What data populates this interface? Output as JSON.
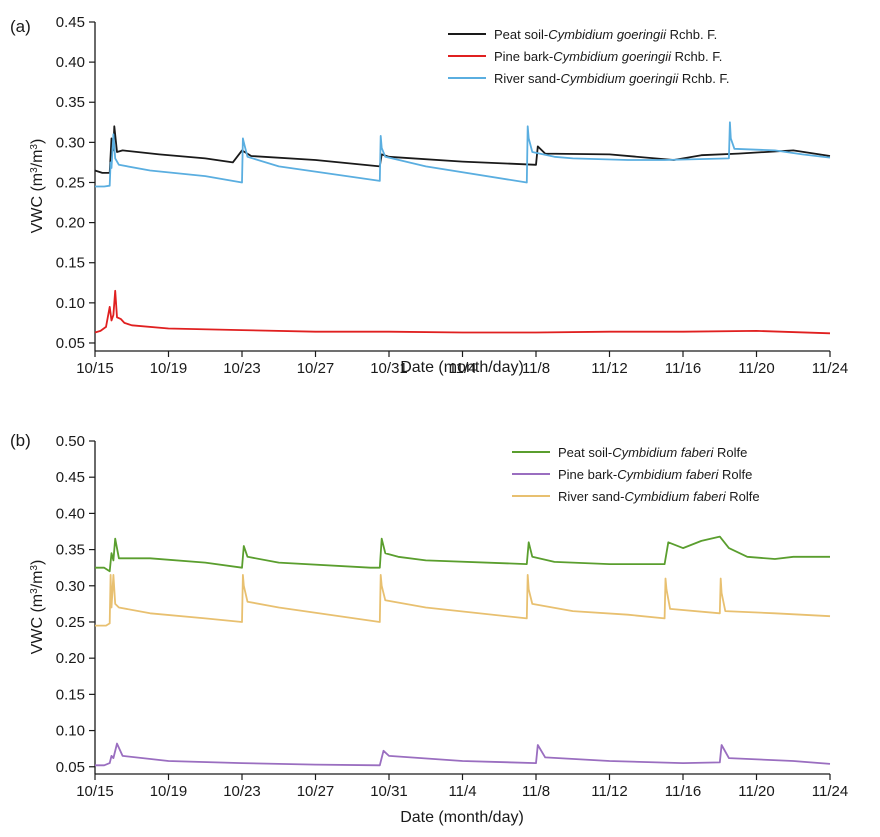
{
  "chart_data": [
    {
      "panel_label": "(a)",
      "type": "line",
      "xlabel": "Date (month/day)",
      "ylabel_main": "VWC (m",
      "ylabel_sup1": "3",
      "ylabel_mid": "/m",
      "ylabel_sup2": "3",
      "ylabel_end": ")",
      "x_tick_labels": [
        "10/15",
        "10/19",
        "10/23",
        "10/27",
        "10/31",
        "11/4",
        "11/8",
        "11/12",
        "11/16",
        "11/20",
        "11/24"
      ],
      "x_range_days": [
        0,
        40
      ],
      "y_ticks": [
        "0.05",
        "0.10",
        "0.15",
        "0.20",
        "0.25",
        "0.30",
        "0.35",
        "0.40",
        "0.45"
      ],
      "ylim": [
        0.04,
        0.45
      ],
      "grid": false,
      "legend_position": "top-right",
      "series": [
        {
          "legend_pre": "Peat soil-",
          "legend_italic": "Cymbidium goeringii",
          "legend_post": " Rchb. F.",
          "color": "#1a1a1a",
          "x": [
            0,
            0.4,
            0.8,
            0.9,
            1.0,
            1.05,
            1.2,
            1.5,
            3.5,
            6.0,
            7.5,
            8.0,
            8.5,
            12.0,
            15.5,
            15.6,
            16.0,
            20.0,
            24.0,
            24.1,
            24.5,
            28.0,
            31.5,
            33.0,
            35.0,
            38.0,
            40.0
          ],
          "y": [
            0.265,
            0.262,
            0.262,
            0.305,
            0.29,
            0.32,
            0.288,
            0.29,
            0.285,
            0.28,
            0.275,
            0.29,
            0.283,
            0.278,
            0.27,
            0.285,
            0.282,
            0.276,
            0.272,
            0.295,
            0.286,
            0.285,
            0.278,
            0.284,
            0.286,
            0.29,
            0.283
          ]
        },
        {
          "legend_pre": "Pine bark-",
          "legend_italic": "Cymbidium goeringii",
          "legend_post": " Rchb. F.",
          "color": "#e02020",
          "x": [
            0,
            0.3,
            0.6,
            0.8,
            0.9,
            1.0,
            1.1,
            1.2,
            1.4,
            1.6,
            2.0,
            4.0,
            8.0,
            12.0,
            16.0,
            20.0,
            24.0,
            28.0,
            32.0,
            36.0,
            40.0
          ],
          "y": [
            0.063,
            0.065,
            0.07,
            0.095,
            0.078,
            0.085,
            0.115,
            0.082,
            0.08,
            0.075,
            0.072,
            0.068,
            0.066,
            0.064,
            0.064,
            0.063,
            0.063,
            0.064,
            0.064,
            0.065,
            0.062
          ]
        },
        {
          "legend_pre": "River sand-",
          "legend_italic": "Cymbidium goeringii",
          "legend_post": " Rchb. F.",
          "color": "#5aaee0",
          "x": [
            0,
            0.5,
            0.8,
            0.85,
            0.9,
            1.0,
            1.1,
            1.3,
            3.0,
            6.0,
            8.0,
            8.05,
            8.1,
            8.3,
            10.0,
            15.5,
            15.55,
            15.6,
            15.8,
            18.0,
            23.5,
            23.55,
            23.6,
            23.8,
            25.0,
            26.0,
            29.0,
            31.0,
            34.5,
            34.55,
            34.6,
            34.8,
            37.0,
            38.5,
            40.0
          ],
          "y": [
            0.245,
            0.245,
            0.246,
            0.275,
            0.268,
            0.31,
            0.28,
            0.272,
            0.265,
            0.258,
            0.25,
            0.305,
            0.3,
            0.282,
            0.27,
            0.252,
            0.308,
            0.293,
            0.282,
            0.27,
            0.25,
            0.32,
            0.305,
            0.288,
            0.282,
            0.28,
            0.278,
            0.278,
            0.28,
            0.325,
            0.305,
            0.292,
            0.29,
            0.285,
            0.281
          ]
        }
      ]
    },
    {
      "panel_label": "(b)",
      "type": "line",
      "xlabel": "Date (month/day)",
      "ylabel_main": "VWC (m",
      "ylabel_sup1": "3",
      "ylabel_mid": "/m",
      "ylabel_sup2": "3",
      "ylabel_end": ")",
      "x_tick_labels": [
        "10/15",
        "10/19",
        "10/23",
        "10/27",
        "10/31",
        "11/4",
        "11/8",
        "11/12",
        "11/16",
        "11/20",
        "11/24"
      ],
      "x_range_days": [
        0,
        40
      ],
      "y_ticks": [
        "0.05",
        "0.10",
        "0.15",
        "0.20",
        "0.25",
        "0.30",
        "0.35",
        "0.40",
        "0.45",
        "0.50"
      ],
      "ylim": [
        0.04,
        0.5
      ],
      "grid": false,
      "legend_position": "top-right",
      "series": [
        {
          "legend_pre": "Peat soil-",
          "legend_italic": "Cymbidium faberi",
          "legend_post": " Rolfe",
          "color": "#5a9e2e",
          "x": [
            0,
            0.5,
            0.8,
            0.9,
            1.0,
            1.1,
            1.3,
            3.0,
            6.0,
            8.0,
            8.1,
            8.3,
            10.0,
            15.0,
            15.5,
            15.6,
            15.8,
            16.5,
            18.0,
            23.5,
            23.6,
            23.8,
            25.0,
            28.0,
            31.0,
            31.2,
            32.0,
            33.0,
            34.0,
            34.5,
            35.5,
            37.0,
            38.0,
            40.0
          ],
          "y": [
            0.325,
            0.325,
            0.32,
            0.345,
            0.335,
            0.365,
            0.338,
            0.338,
            0.332,
            0.325,
            0.355,
            0.34,
            0.332,
            0.325,
            0.325,
            0.365,
            0.345,
            0.34,
            0.335,
            0.33,
            0.36,
            0.34,
            0.333,
            0.33,
            0.33,
            0.36,
            0.352,
            0.362,
            0.368,
            0.352,
            0.34,
            0.337,
            0.34,
            0.34
          ]
        },
        {
          "legend_pre": "Pine bark-",
          "legend_italic": "Cymbidium faberi",
          "legend_post": " Rolfe",
          "color": "#9a6ec0",
          "x": [
            0,
            0.5,
            0.8,
            0.9,
            1.0,
            1.2,
            1.5,
            4.0,
            8.0,
            12.0,
            15.5,
            15.7,
            16.0,
            20.0,
            24.0,
            24.1,
            24.5,
            28.0,
            32.0,
            34.0,
            34.1,
            34.5,
            38.0,
            40.0
          ],
          "y": [
            0.052,
            0.052,
            0.055,
            0.065,
            0.062,
            0.082,
            0.065,
            0.058,
            0.055,
            0.053,
            0.052,
            0.072,
            0.065,
            0.058,
            0.055,
            0.08,
            0.063,
            0.058,
            0.055,
            0.056,
            0.08,
            0.062,
            0.058,
            0.054
          ]
        },
        {
          "legend_pre": "River sand-",
          "legend_italic": "Cymbidium faberi",
          "legend_post": " Rolfe",
          "color": "#e8c070",
          "x": [
            0,
            0.6,
            0.8,
            0.85,
            0.9,
            1.0,
            1.1,
            1.3,
            3.0,
            6.0,
            8.0,
            8.05,
            8.1,
            8.3,
            10.0,
            15.5,
            15.55,
            15.6,
            15.8,
            18.0,
            23.5,
            23.55,
            23.6,
            23.8,
            26.0,
            29.0,
            31.0,
            31.05,
            31.1,
            31.3,
            34.0,
            34.05,
            34.1,
            34.3,
            37.0,
            40.0
          ],
          "y": [
            0.245,
            0.245,
            0.248,
            0.315,
            0.27,
            0.315,
            0.275,
            0.27,
            0.262,
            0.255,
            0.25,
            0.315,
            0.3,
            0.278,
            0.27,
            0.25,
            0.315,
            0.3,
            0.28,
            0.27,
            0.255,
            0.315,
            0.295,
            0.275,
            0.265,
            0.26,
            0.255,
            0.31,
            0.295,
            0.268,
            0.262,
            0.31,
            0.29,
            0.265,
            0.262,
            0.258
          ]
        }
      ]
    }
  ]
}
